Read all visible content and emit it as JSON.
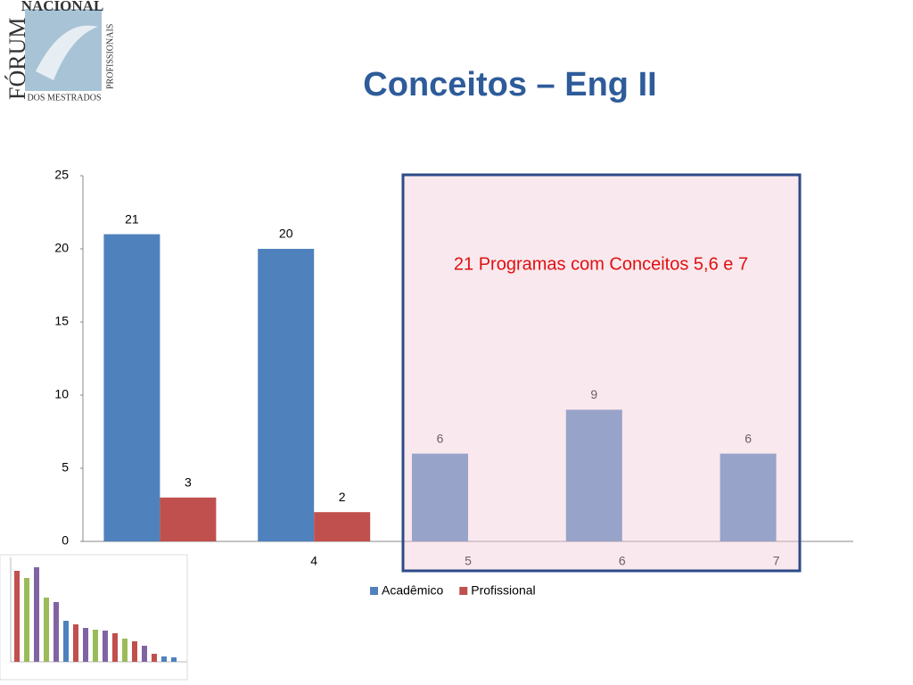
{
  "logo": {
    "top": "NACIONAL",
    "left": "FÓRUM",
    "right": "PROFISSIONAIS",
    "bottom": "DOS MESTRADOS"
  },
  "chart_data": {
    "type": "bar",
    "title": "Conceitos – Eng II",
    "categories": [
      null,
      "4",
      "5",
      "6",
      "7"
    ],
    "series": [
      {
        "name": "Acadêmico",
        "color": "#4f81bd",
        "values": [
          21,
          20,
          6,
          9,
          6
        ]
      },
      {
        "name": "Profissional",
        "color": "#c0504d",
        "values": [
          3,
          2,
          null,
          null,
          null
        ]
      }
    ],
    "ylim": [
      0,
      25
    ],
    "yticks": [
      0,
      5,
      10,
      15,
      20,
      25
    ],
    "grid": false,
    "legend": "bottom",
    "annotation": "21 Programas com Conceitos 5,6 e 7"
  }
}
